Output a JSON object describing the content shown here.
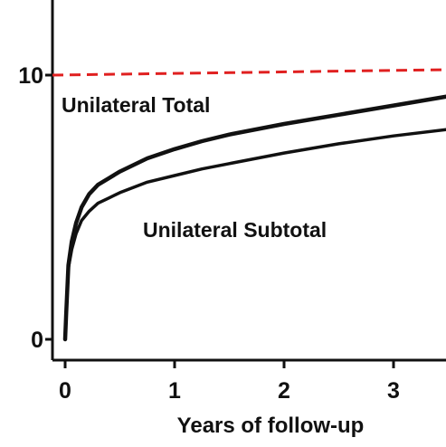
{
  "chart_data": {
    "type": "line",
    "title": "",
    "xlabel": "Years of follow-up",
    "ylabel": "",
    "xlim": [
      0,
      3.5
    ],
    "ylim": [
      0,
      10
    ],
    "x_ticks": [
      "0",
      "1",
      "2",
      "3"
    ],
    "y_ticks": [
      "0",
      "10"
    ],
    "reference_line": {
      "y": 10,
      "color": "#e02020",
      "style": "dashed"
    },
    "series": [
      {
        "name": "Unilateral Total",
        "color": "#111111",
        "points": [
          [
            0,
            0
          ],
          [
            0.01,
            1.0
          ],
          [
            0.03,
            2.8
          ],
          [
            0.06,
            3.7
          ],
          [
            0.1,
            4.4
          ],
          [
            0.15,
            5.0
          ],
          [
            0.22,
            5.5
          ],
          [
            0.3,
            5.85
          ],
          [
            0.4,
            6.1
          ],
          [
            0.5,
            6.35
          ],
          [
            0.75,
            6.85
          ],
          [
            1.0,
            7.2
          ],
          [
            1.25,
            7.5
          ],
          [
            1.5,
            7.75
          ],
          [
            2.0,
            8.15
          ],
          [
            2.5,
            8.5
          ],
          [
            3.0,
            8.85
          ],
          [
            3.5,
            9.2
          ]
        ]
      },
      {
        "name": "Unilateral Subtotal",
        "color": "#111111",
        "points": [
          [
            0,
            0
          ],
          [
            0.01,
            1.0
          ],
          [
            0.03,
            2.7
          ],
          [
            0.06,
            3.4
          ],
          [
            0.1,
            4.0
          ],
          [
            0.15,
            4.5
          ],
          [
            0.22,
            4.85
          ],
          [
            0.3,
            5.15
          ],
          [
            0.4,
            5.35
          ],
          [
            0.5,
            5.55
          ],
          [
            0.75,
            5.95
          ],
          [
            1.0,
            6.2
          ],
          [
            1.25,
            6.45
          ],
          [
            1.5,
            6.65
          ],
          [
            2.0,
            7.05
          ],
          [
            2.5,
            7.4
          ],
          [
            3.0,
            7.7
          ],
          [
            3.5,
            7.95
          ]
        ]
      }
    ]
  }
}
